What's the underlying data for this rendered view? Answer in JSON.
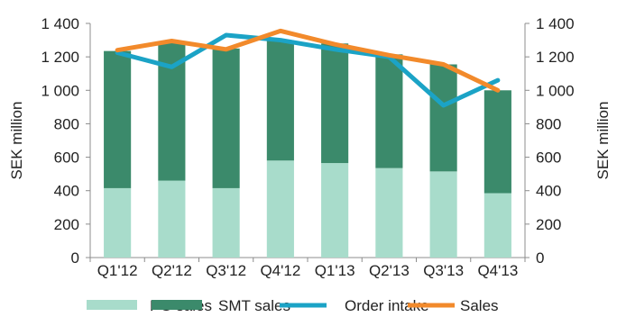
{
  "chart_data": {
    "type": "bar",
    "stacked": true,
    "categories": [
      "Q1'12",
      "Q2'12",
      "Q3'12",
      "Q4'12",
      "Q1'13",
      "Q2'13",
      "Q3'13",
      "Q4'13"
    ],
    "series": [
      {
        "name": "PG sales",
        "type": "bar",
        "color": "#a8dccb",
        "values": [
          415,
          460,
          415,
          580,
          565,
          535,
          515,
          385
        ]
      },
      {
        "name": "SMT sales",
        "type": "bar",
        "color": "#3b8a6b",
        "values": [
          820,
          825,
          835,
          720,
          715,
          680,
          640,
          615
        ]
      },
      {
        "name": "Order intake",
        "type": "line",
        "color": "#1ba3c6",
        "values": [
          1225,
          1140,
          1330,
          1300,
          1245,
          1200,
          910,
          1060
        ]
      },
      {
        "name": "Sales",
        "type": "line",
        "color": "#f28a2b",
        "values": [
          1240,
          1295,
          1245,
          1355,
          1275,
          1210,
          1155,
          1000
        ]
      }
    ],
    "ylabel": "SEK million",
    "ylabel_right": "SEK million",
    "ylim": [
      0,
      1400
    ],
    "yticks": [
      0,
      200,
      400,
      600,
      800,
      1000,
      1200,
      1400
    ],
    "ytick_labels": [
      "0",
      "200",
      "400",
      "600",
      "800",
      "1 000",
      "1 200",
      "1 400"
    ],
    "grid": false,
    "legend": "bottom"
  }
}
